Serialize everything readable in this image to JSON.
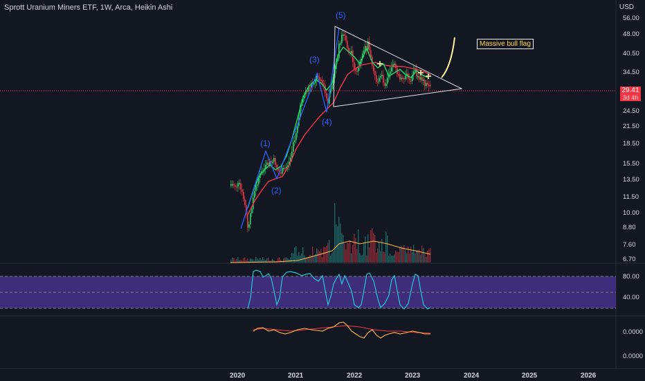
{
  "header": {
    "title": "Sprott Uranium Miners ETF, 1W, Arca, Heikin Ashi",
    "currency": "USD"
  },
  "price_badge": {
    "price": "29.41",
    "countdown": "3d 4h"
  },
  "annotation": {
    "text": "Massive bull flag"
  },
  "colors": {
    "background": "#131722",
    "up": "#26d96a",
    "down": "#f23645",
    "ema_fast": "#26d96a",
    "ema_slow": "#f23645",
    "wave": "#2962ff",
    "triangle": "#e0e3eb",
    "rsi_band": "#3d2d7a",
    "rsi_line": "#26c6da",
    "macd_line": "#ffb74d",
    "signal_line": "#f23645",
    "curve": "#fff59d"
  },
  "chart_data": {
    "type": "candlestick",
    "price_axis": {
      "scale": "log",
      "ticks": [
        "56.00",
        "48.00",
        "40.50",
        "34.50",
        "29.41",
        "24.50",
        "21.50",
        "18.50",
        "15.50",
        "13.50",
        "11.50",
        "10.00",
        "8.80",
        "7.60",
        "6.70"
      ]
    },
    "x_axis": {
      "labels": [
        "2020",
        "2021",
        "2022",
        "2023",
        "2024",
        "2025",
        "2026"
      ]
    },
    "last_price": 29.41,
    "waves": [
      {
        "label": "(1)",
        "x": "2020-09",
        "price": 17.5
      },
      {
        "label": "(2)",
        "x": "2020-11",
        "price": 13.6
      },
      {
        "label": "(3)",
        "x": "2021-04",
        "price": 35.0
      },
      {
        "label": "(4)",
        "x": "2021-06",
        "price": 26.0
      },
      {
        "label": "(5)",
        "x": "2021-09",
        "price": 50.0
      }
    ],
    "wave_path": [
      {
        "x": "2020-03",
        "price": 8.6
      },
      {
        "x": "2020-09",
        "price": 17.5
      },
      {
        "x": "2020-11",
        "price": 13.6
      },
      {
        "x": "2021-04",
        "price": 35.0
      },
      {
        "x": "2021-06",
        "price": 26.0
      },
      {
        "x": "2021-09",
        "price": 50.0
      }
    ],
    "triangle": {
      "apex_upper": {
        "x": "2021-08",
        "price": 50.0
      },
      "apex_lower": {
        "x": "2021-08",
        "price": 26.0
      },
      "tip": {
        "x": "2023-11",
        "price": 31.5
      }
    },
    "pattern": "bull flag",
    "rsi_panel": {
      "ticks": [
        "80.00",
        "40.00"
      ]
    },
    "macd_panel": {
      "ticks": [
        "0.0000",
        "0.0000"
      ]
    }
  }
}
